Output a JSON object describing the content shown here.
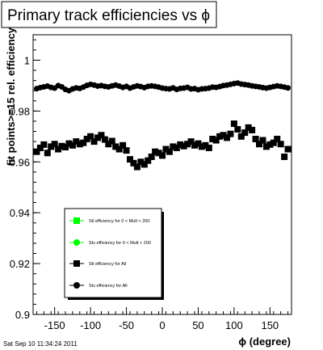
{
  "chart_data": {
    "type": "scatter",
    "title": "Primary track efficiencies vs ϕ",
    "xlabel": "ϕ (degree)",
    "ylabel": "fit points>=15 rel. efficiency",
    "xlim": [
      -180,
      180
    ],
    "ylim": [
      0.9,
      1.01
    ],
    "x_ticks": [
      -150,
      -100,
      -50,
      0,
      50,
      100,
      150
    ],
    "y_ticks": [
      0.9,
      0.92,
      0.94,
      0.96,
      0.98,
      1
    ],
    "y_tick_labels": [
      "0.9",
      "0.92",
      "0.94",
      "0.96",
      "0.98",
      "1"
    ],
    "grid": false,
    "legend_position": "bottom-left",
    "legend": [
      {
        "label": "Stl efficiency  for 0 < Mult < 200",
        "marker": "square",
        "color": "#00ff00"
      },
      {
        "label": "Stv efficiency  for 0 < Mult < 200",
        "marker": "circle",
        "color": "#00ff00"
      },
      {
        "label": "Stl efficiency  for All",
        "marker": "square",
        "color": "#000000"
      },
      {
        "label": "Stv efficiency  for All",
        "marker": "circle",
        "color": "#000000"
      }
    ],
    "x": [
      -175,
      -170,
      -165,
      -160,
      -155,
      -150,
      -145,
      -140,
      -135,
      -130,
      -125,
      -120,
      -115,
      -110,
      -105,
      -100,
      -95,
      -90,
      -85,
      -80,
      -75,
      -70,
      -65,
      -60,
      -55,
      -50,
      -45,
      -40,
      -35,
      -30,
      -25,
      -20,
      -15,
      -10,
      -5,
      0,
      5,
      10,
      15,
      20,
      25,
      30,
      35,
      40,
      45,
      50,
      55,
      60,
      65,
      70,
      75,
      80,
      85,
      90,
      95,
      100,
      105,
      110,
      115,
      120,
      125,
      130,
      135,
      140,
      145,
      150,
      155,
      160,
      165,
      170,
      175
    ],
    "series": [
      {
        "name": "Stv efficiency  for All",
        "marker": "circle",
        "color": "#000000",
        "values": [
          0.9888,
          0.9892,
          0.9895,
          0.9898,
          0.9893,
          0.989,
          0.99,
          0.9895,
          0.9885,
          0.988,
          0.9887,
          0.9891,
          0.9889,
          0.9894,
          0.9901,
          0.9905,
          0.9902,
          0.9898,
          0.99,
          0.9897,
          0.9895,
          0.9899,
          0.9902,
          0.9898,
          0.9893,
          0.9897,
          0.989,
          0.9895,
          0.9899,
          0.9896,
          0.9892,
          0.9897,
          0.9899,
          0.9897,
          0.9894,
          0.989,
          0.9888,
          0.9887,
          0.9891,
          0.9885,
          0.9889,
          0.989,
          0.9893,
          0.9887,
          0.9888,
          0.9884,
          0.9887,
          0.9888,
          0.989,
          0.9894,
          0.9893,
          0.9896,
          0.99,
          0.9902,
          0.9905,
          0.9908,
          0.991,
          0.9906,
          0.9904,
          0.9902,
          0.9899,
          0.9897,
          0.9895,
          0.9892,
          0.989,
          0.9893,
          0.9896,
          0.9899,
          0.9897,
          0.9894,
          0.9891
        ]
      },
      {
        "name": "Stl efficiency  for All",
        "marker": "square",
        "color": "#000000",
        "values": [
          0.964,
          0.9655,
          0.9668,
          0.9635,
          0.966,
          0.967,
          0.965,
          0.9662,
          0.9658,
          0.9672,
          0.9665,
          0.968,
          0.967,
          0.9675,
          0.969,
          0.97,
          0.968,
          0.9695,
          0.9705,
          0.9688,
          0.967,
          0.9682,
          0.966,
          0.965,
          0.9665,
          0.9645,
          0.961,
          0.9595,
          0.958,
          0.96,
          0.959,
          0.9605,
          0.962,
          0.964,
          0.9635,
          0.9625,
          0.965,
          0.964,
          0.966,
          0.9655,
          0.9668,
          0.9662,
          0.967,
          0.968,
          0.9665,
          0.9672,
          0.966,
          0.9665,
          0.9655,
          0.969,
          0.9685,
          0.97,
          0.9705,
          0.9695,
          0.971,
          0.975,
          0.9728,
          0.97,
          0.9715,
          0.9735,
          0.9725,
          0.969,
          0.967,
          0.9685,
          0.966,
          0.9668,
          0.9675,
          0.969,
          0.967,
          0.962,
          0.965
        ]
      }
    ]
  },
  "footer": {
    "timestamp": "Sat Sep 10 11:34:24 2011"
  }
}
